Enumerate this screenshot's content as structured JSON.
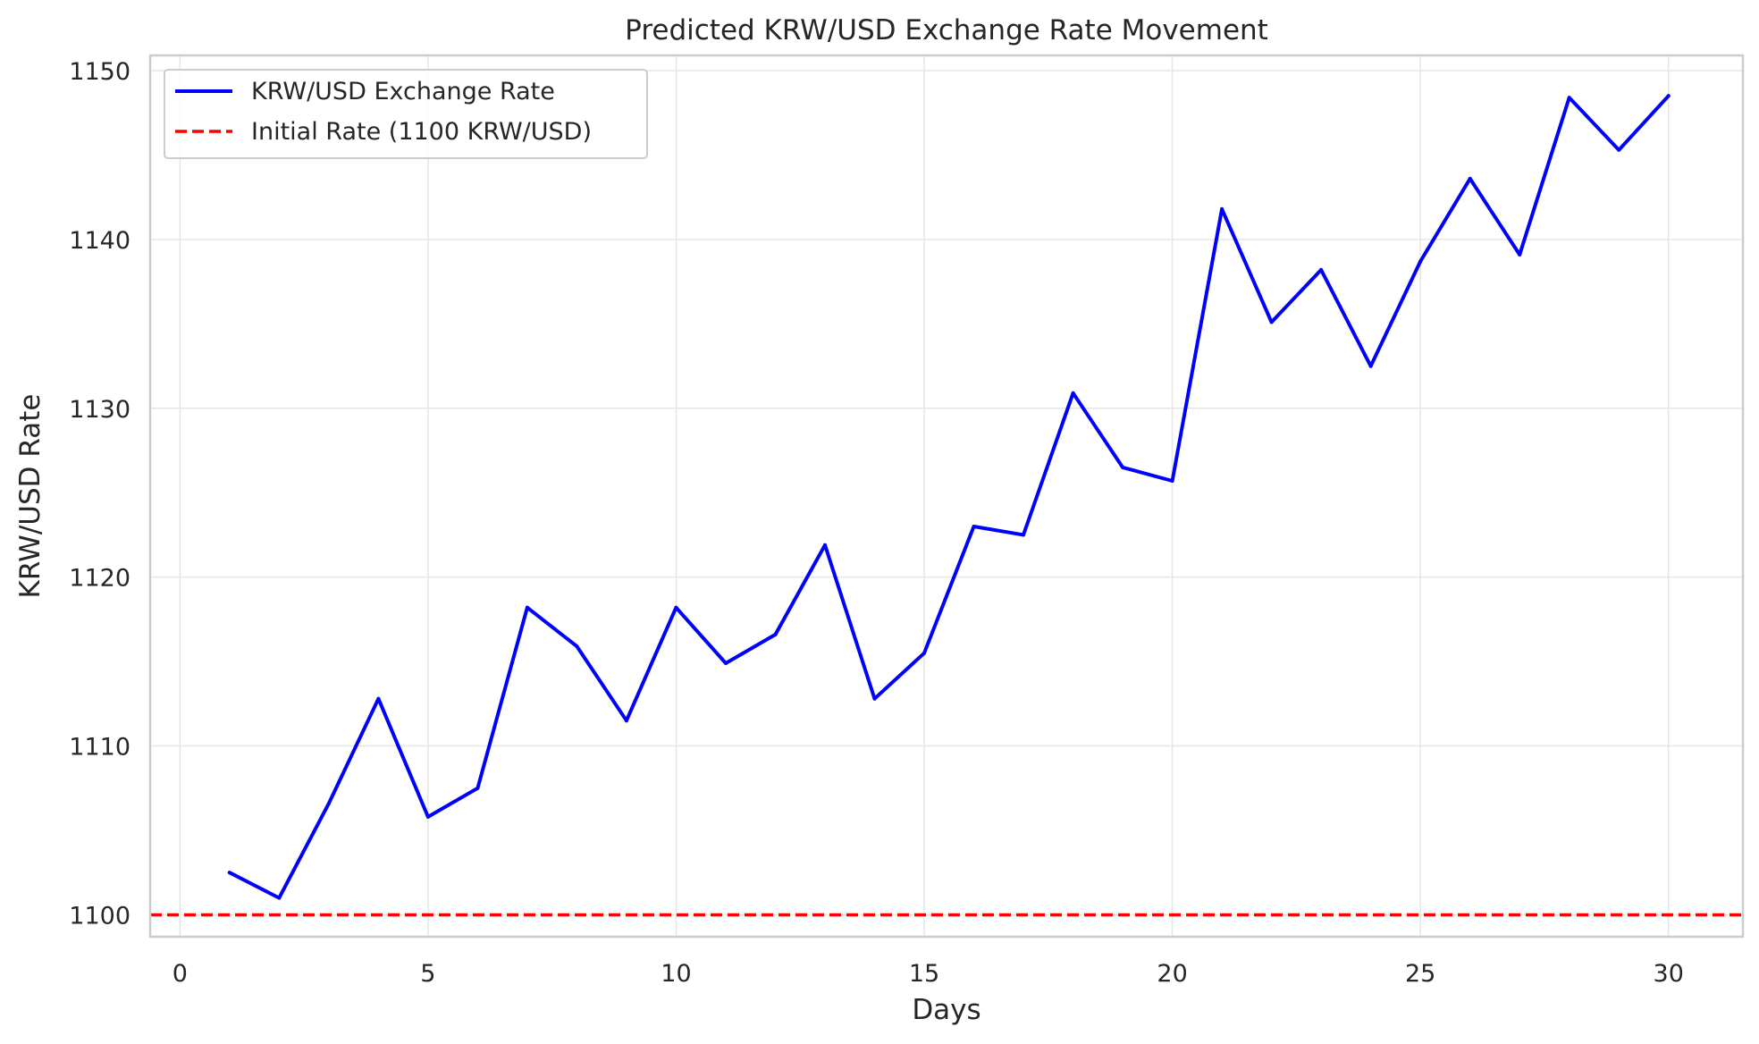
{
  "chart_data": {
    "type": "line",
    "title": "Predicted KRW/USD Exchange Rate Movement",
    "xlabel": "Days",
    "ylabel": "KRW/USD Rate",
    "xlim": [
      -0.6,
      31.5
    ],
    "ylim": [
      1098.7,
      1150.9
    ],
    "x_ticks": [
      0,
      5,
      10,
      15,
      20,
      25,
      30
    ],
    "y_ticks": [
      1100,
      1110,
      1120,
      1130,
      1140,
      1150
    ],
    "grid": true,
    "legend_position": "top-left",
    "series": [
      {
        "name": "KRW/USD Exchange Rate",
        "color": "#0000ff",
        "style": "solid",
        "x": [
          1,
          2,
          3,
          4,
          5,
          6,
          7,
          8,
          9,
          10,
          11,
          12,
          13,
          14,
          15,
          16,
          17,
          18,
          19,
          20,
          21,
          22,
          23,
          24,
          25,
          26,
          27,
          28,
          29,
          30
        ],
        "values": [
          1102.5,
          1101.0,
          1106.6,
          1112.8,
          1105.8,
          1107.5,
          1118.2,
          1115.9,
          1111.5,
          1118.2,
          1114.9,
          1116.6,
          1121.9,
          1112.8,
          1115.5,
          1123.0,
          1122.5,
          1130.9,
          1126.5,
          1125.7,
          1141.8,
          1135.1,
          1138.2,
          1132.5,
          1138.7,
          1143.6,
          1139.1,
          1148.4,
          1145.3,
          1148.5
        ]
      },
      {
        "name": "Initial Rate (1100 KRW/USD)",
        "color": "#ff0000",
        "style": "dashed",
        "hline": 1100
      }
    ]
  }
}
